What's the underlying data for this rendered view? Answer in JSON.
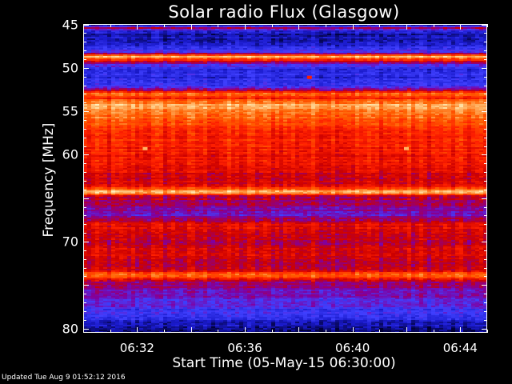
{
  "chart_data": {
    "type": "heatmap",
    "title": "Solar radio Flux (Glasgow)",
    "ylabel": "Frequency [MHz]",
    "xlabel": "Start Time (05-May-15 06:30:00)",
    "ylim": [
      45,
      80
    ],
    "y_reversed": true,
    "xlim_minutes": [
      0,
      15
    ],
    "yticks": [
      {
        "label": "45",
        "value": 45
      },
      {
        "label": "50",
        "value": 50
      },
      {
        "label": "55",
        "value": 55
      },
      {
        "label": "60",
        "value": 60
      },
      {
        "label": "70",
        "value": 70
      },
      {
        "label": "80",
        "value": 80
      }
    ],
    "xticks": [
      {
        "label": "06:32",
        "value": 2
      },
      {
        "label": "06:36",
        "value": 6
      },
      {
        "label": "06:40",
        "value": 10
      },
      {
        "label": "06:44",
        "value": 14
      }
    ],
    "colormap": [
      "#000033",
      "#1a1acc",
      "#4040ff",
      "#8000a0",
      "#cc0000",
      "#ff2000",
      "#ff6000",
      "#ffb060",
      "#ffffd0"
    ],
    "frequency_profile_mhz_level": [
      [
        45.0,
        0.0
      ],
      [
        45.4,
        0.45
      ],
      [
        45.8,
        0.1
      ],
      [
        46.5,
        0.12
      ],
      [
        47.5,
        0.16
      ],
      [
        48.3,
        0.3
      ],
      [
        48.7,
        0.92
      ],
      [
        49.1,
        0.6
      ],
      [
        49.5,
        0.35
      ],
      [
        50.0,
        0.2
      ],
      [
        51.0,
        0.18
      ],
      [
        52.0,
        0.22
      ],
      [
        52.5,
        0.4
      ],
      [
        53.0,
        0.78
      ],
      [
        53.5,
        0.62
      ],
      [
        54.3,
        0.88
      ],
      [
        55.0,
        0.8
      ],
      [
        56.0,
        0.72
      ],
      [
        57.0,
        0.66
      ],
      [
        58.0,
        0.62
      ],
      [
        59.0,
        0.6
      ],
      [
        60.0,
        0.58
      ],
      [
        61.5,
        0.55
      ],
      [
        62.5,
        0.5
      ],
      [
        63.5,
        0.55
      ],
      [
        64.3,
        0.9
      ],
      [
        64.8,
        0.48
      ],
      [
        66.0,
        0.4
      ],
      [
        67.0,
        0.35
      ],
      [
        68.0,
        0.55
      ],
      [
        69.0,
        0.52
      ],
      [
        70.0,
        0.48
      ],
      [
        71.0,
        0.52
      ],
      [
        72.0,
        0.5
      ],
      [
        73.0,
        0.45
      ],
      [
        74.0,
        0.78
      ],
      [
        74.6,
        0.42
      ],
      [
        75.5,
        0.38
      ],
      [
        76.5,
        0.32
      ],
      [
        77.5,
        0.26
      ],
      [
        78.5,
        0.2
      ],
      [
        79.3,
        0.12
      ],
      [
        80.0,
        0.08
      ]
    ],
    "point_features": [
      {
        "minutes": 8.4,
        "mhz": 51.1,
        "level": 0.62
      },
      {
        "minutes": 2.3,
        "mhz": 59.3,
        "level": 0.88
      },
      {
        "minutes": 12.0,
        "mhz": 59.3,
        "level": 0.88
      }
    ]
  },
  "updated": "Updated Tue Aug  9 01:52:12 2016"
}
